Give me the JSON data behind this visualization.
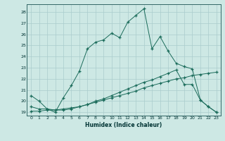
{
  "xlabel": "Humidex (Indice chaleur)",
  "ylabel": "",
  "background_color": "#cde8e4",
  "grid_color": "#aacccc",
  "line_color": "#1a6b5a",
  "xlim": [
    -0.5,
    23.5
  ],
  "ylim": [
    18.7,
    28.7
  ],
  "yticks": [
    19,
    20,
    21,
    22,
    23,
    24,
    25,
    26,
    27,
    28
  ],
  "xticks": [
    0,
    1,
    2,
    3,
    4,
    5,
    6,
    7,
    8,
    9,
    10,
    11,
    12,
    13,
    14,
    15,
    16,
    17,
    18,
    19,
    20,
    21,
    22,
    23
  ],
  "line1_x": [
    0,
    1,
    2,
    3,
    4,
    5,
    6,
    7,
    8,
    9,
    10,
    11,
    12,
    13,
    14,
    15,
    16,
    17,
    18,
    19,
    20,
    21,
    22,
    23
  ],
  "line1_y": [
    20.5,
    20.0,
    19.3,
    19.0,
    20.3,
    21.4,
    22.7,
    24.7,
    25.3,
    25.5,
    26.1,
    25.7,
    27.1,
    27.7,
    28.3,
    24.7,
    25.8,
    24.5,
    23.4,
    23.1,
    22.9,
    20.1,
    19.5,
    19.0
  ],
  "line2_x": [
    0,
    1,
    2,
    3,
    4,
    5,
    6,
    7,
    8,
    9,
    10,
    11,
    12,
    13,
    14,
    15,
    16,
    17,
    18,
    19,
    20,
    21,
    22,
    23
  ],
  "line2_y": [
    19.1,
    19.1,
    19.2,
    19.2,
    19.3,
    19.4,
    19.5,
    19.7,
    19.9,
    20.1,
    20.3,
    20.5,
    20.7,
    20.9,
    21.2,
    21.4,
    21.6,
    21.8,
    22.0,
    22.1,
    22.3,
    22.4,
    22.5,
    22.6
  ],
  "line3_x": [
    0,
    1,
    2,
    3,
    4,
    5,
    6,
    7,
    8,
    9,
    10,
    11,
    12,
    13,
    14,
    15,
    16,
    17,
    18,
    19,
    20,
    21,
    22,
    23
  ],
  "line3_y": [
    19.5,
    19.3,
    19.3,
    19.2,
    19.2,
    19.3,
    19.5,
    19.7,
    20.0,
    20.2,
    20.5,
    20.8,
    21.1,
    21.4,
    21.7,
    21.9,
    22.2,
    22.5,
    22.8,
    21.5,
    21.5,
    20.1,
    19.5,
    19.0
  ]
}
